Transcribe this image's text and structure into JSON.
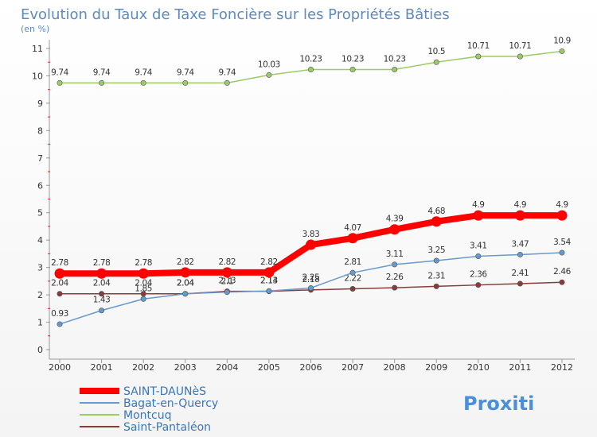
{
  "chart_data": {
    "type": "line",
    "title": "Evolution du Taux de Taxe Foncière sur les Propriétés Bâties",
    "subtitle": "(en %)",
    "x": [
      "2000",
      "2001",
      "2002",
      "2003",
      "2004",
      "2005",
      "2006",
      "2007",
      "2008",
      "2009",
      "2010",
      "2011",
      "2012"
    ],
    "ylim": [
      0,
      11
    ],
    "yticks": [
      "0",
      "1",
      "2",
      "3",
      "4",
      "5",
      "6",
      "7",
      "8",
      "9",
      "10",
      "11"
    ],
    "grid": false,
    "legend_placement": "bottom-left",
    "series": [
      {
        "name": "SAINT-DAUNèS",
        "color": "#ff0000",
        "values": [
          2.78,
          2.78,
          2.78,
          2.82,
          2.82,
          2.82,
          3.83,
          4.07,
          4.39,
          4.68,
          4.9,
          4.9,
          4.9
        ],
        "labels": [
          "2.78",
          "2.78",
          "2.78",
          "2.82",
          "2.82",
          "2.82",
          "3.83",
          "4.07",
          "4.39",
          "4.68",
          "4.9",
          "4.9",
          "4.9"
        ]
      },
      {
        "name": "Bagat-en-Quercy",
        "color": "#6699cc",
        "values": [
          0.93,
          1.43,
          1.85,
          2.04,
          2.1,
          2.14,
          2.25,
          2.81,
          3.11,
          3.25,
          3.41,
          3.47,
          3.54
        ],
        "labels": [
          "0.93",
          "1.43",
          "1.85",
          "2.04",
          "2.1",
          "2.14",
          "2.25",
          "2.81",
          "3.11",
          "3.25",
          "3.41",
          "3.47",
          "3.54"
        ]
      },
      {
        "name": "Montcuq",
        "color": "#99cc66",
        "values": [
          9.74,
          9.74,
          9.74,
          9.74,
          9.74,
          10.03,
          10.23,
          10.23,
          10.23,
          10.5,
          10.71,
          10.71,
          10.9
        ],
        "labels": [
          "9.74",
          "9.74",
          "9.74",
          "9.74",
          "9.74",
          "10.03",
          "10.23",
          "10.23",
          "10.23",
          "10.5",
          "10.71",
          "10.71",
          "10.9"
        ]
      },
      {
        "name": "Saint-Pantaléon",
        "color": "#8b3a3a",
        "values": [
          2.04,
          2.04,
          2.04,
          2.04,
          2.13,
          2.13,
          2.18,
          2.22,
          2.26,
          2.31,
          2.36,
          2.41,
          2.46
        ],
        "labels": [
          "2.04",
          "2.04",
          "2.04",
          "2.04",
          "2.13",
          "2.13",
          "2.18",
          "2.22",
          "2.26",
          "2.31",
          "2.36",
          "2.41",
          "2.46"
        ]
      }
    ]
  },
  "logo": {
    "text": "Proxiti"
  }
}
